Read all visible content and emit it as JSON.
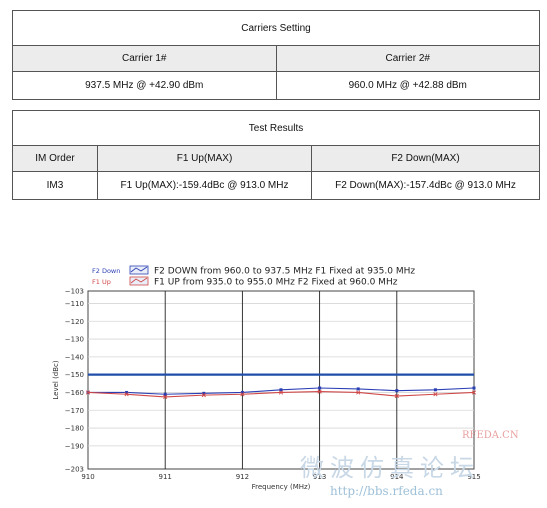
{
  "carriers": {
    "title": "Carriers Setting",
    "headers": [
      "Carrier 1#",
      "Carrier 2#"
    ],
    "values": [
      "937.5 MHz @ +42.90 dBm",
      "960.0 MHz @ +42.88 dBm"
    ]
  },
  "results": {
    "title": "Test Results",
    "headers": [
      "IM Order",
      "F1 Up(MAX)",
      "F2 Down(MAX)"
    ],
    "row": [
      "IM3",
      "F1 Up(MAX):-159.4dBc  @ 913.0 MHz",
      "F2 Down(MAX):-157.4dBc @ 913.0 MHz"
    ]
  },
  "chart_data": {
    "type": "line",
    "xlabel": "Frequency (MHz)",
    "ylabel": "Level (dBc)",
    "xlim": [
      910,
      915
    ],
    "ylim": [
      -203,
      -103
    ],
    "xticks": [
      910,
      911,
      912,
      913,
      914,
      915
    ],
    "yticks": [
      -103,
      -110,
      -120,
      -130,
      -140,
      -150,
      -160,
      -170,
      -180,
      -190,
      -203
    ],
    "grid": true,
    "legend_position": "top",
    "limit_line": {
      "value": -150,
      "color": "#1f4fa8"
    },
    "series": [
      {
        "name": "F2 DOWN from 960.0 to 937.5  MHz F1 Fixed at 935.0  MHz",
        "legend_tag": "F2 Down",
        "color": "#2b3fb5",
        "x": [
          910,
          910.5,
          911,
          911.5,
          912,
          912.5,
          913,
          913.5,
          914,
          914.5,
          915
        ],
        "y": [
          -160,
          -160,
          -161,
          -160.5,
          -160,
          -158.5,
          -157.5,
          -158,
          -159,
          -158.5,
          -157.5
        ]
      },
      {
        "name": "F1 UP from 935.0 to 955.0  MHz F2 Fixed at 960.0  MHz",
        "legend_tag": "F1 Up",
        "color": "#d04848",
        "x": [
          910,
          910.5,
          911,
          911.5,
          912,
          912.5,
          913,
          913.5,
          914,
          914.5,
          915
        ],
        "y": [
          -160,
          -161,
          -162.5,
          -161.5,
          -161,
          -160,
          -159.5,
          -160,
          -162,
          -161,
          -160
        ]
      }
    ]
  },
  "watermark": {
    "line1": "微波仿真论坛",
    "brand": "RFEDA.CN",
    "url": "http://bbs.rfeda.cn"
  }
}
